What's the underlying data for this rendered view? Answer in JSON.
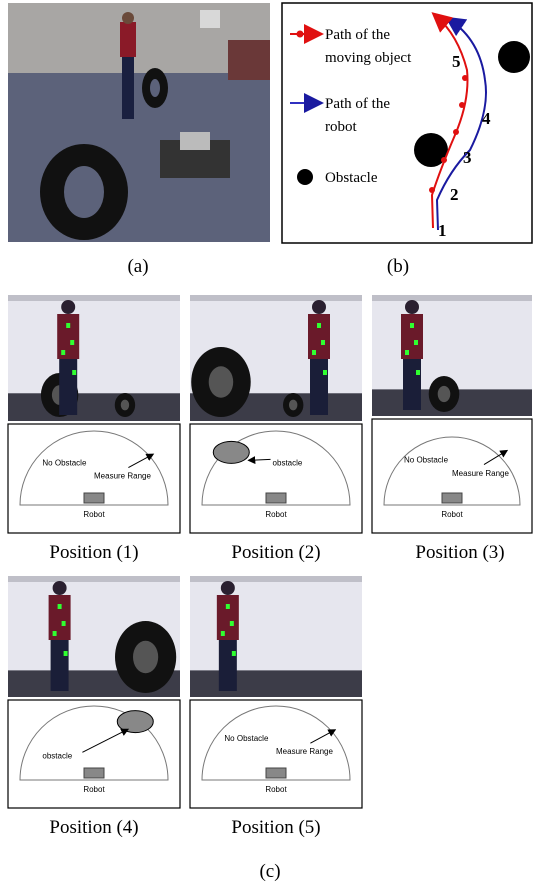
{
  "panel_a": {
    "label": "(a)"
  },
  "panel_b": {
    "label": "(b)",
    "legend": {
      "moving_object": [
        "Path of the",
        "moving object"
      ],
      "robot": [
        "Path of the",
        "robot"
      ],
      "obstacle": "Obstacle"
    },
    "waypoints": [
      "1",
      "2",
      "3",
      "4",
      "5"
    ]
  },
  "panel_c": {
    "label": "(c)",
    "positions": [
      {
        "caption": "Position (1)",
        "diagram": {
          "labels": [
            "No Obstacle",
            "Measure Range"
          ],
          "robot": "Robot"
        }
      },
      {
        "caption": "Position (2)",
        "diagram": {
          "labels": [
            "obstacle"
          ],
          "robot": "Robot"
        }
      },
      {
        "caption": "Position (3)",
        "diagram": {
          "labels": [
            "No Obstacle",
            "Measure Range"
          ],
          "robot": "Robot"
        }
      },
      {
        "caption": "Position (4)",
        "diagram": {
          "labels": [
            "obstacle"
          ],
          "robot": "Robot"
        }
      },
      {
        "caption": "Position (5)",
        "diagram": {
          "labels": [
            "No Obstacle",
            "Measure Range"
          ],
          "robot": "Robot"
        }
      }
    ]
  }
}
